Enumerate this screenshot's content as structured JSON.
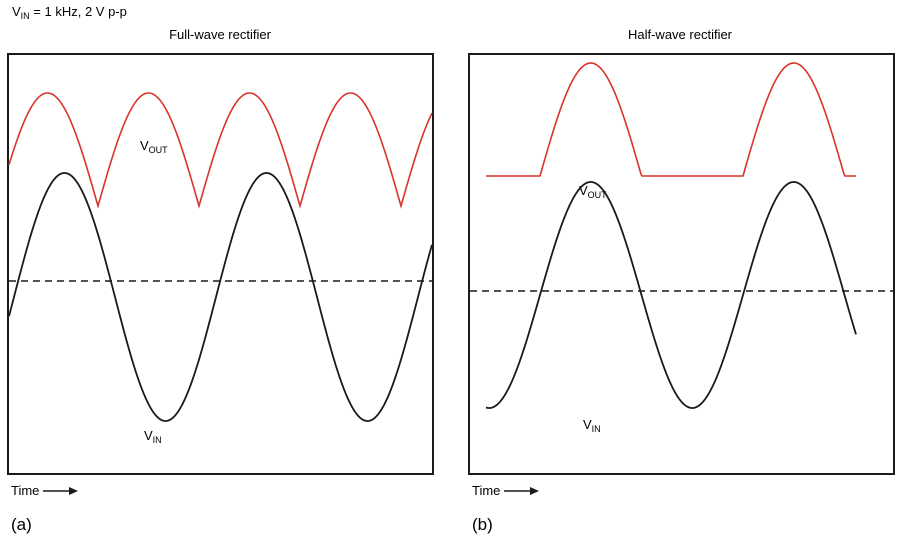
{
  "header": {
    "v": "V",
    "sub": "IN",
    "rest": " = 1 kHz, 2 V p-p"
  },
  "panels": {
    "a": {
      "title": "Full-wave rectifier",
      "vout": {
        "main": "V",
        "sub": "OUT"
      },
      "vin": {
        "main": "V",
        "sub": "IN"
      },
      "time_label": "Time",
      "caption": "(a)"
    },
    "b": {
      "title": "Half-wave rectifier",
      "vout": {
        "main": "V",
        "sub": "OUT"
      },
      "vin": {
        "main": "V",
        "sub": "IN"
      },
      "time_label": "Time",
      "caption": "(b)"
    }
  },
  "colors": {
    "vout": "#d9342b",
    "vin": "#1a1a1a",
    "baseline": "#1a1a1a",
    "border": "#1a1a1a"
  },
  "icons": {
    "time_arrow": "right-arrow-icon"
  }
}
